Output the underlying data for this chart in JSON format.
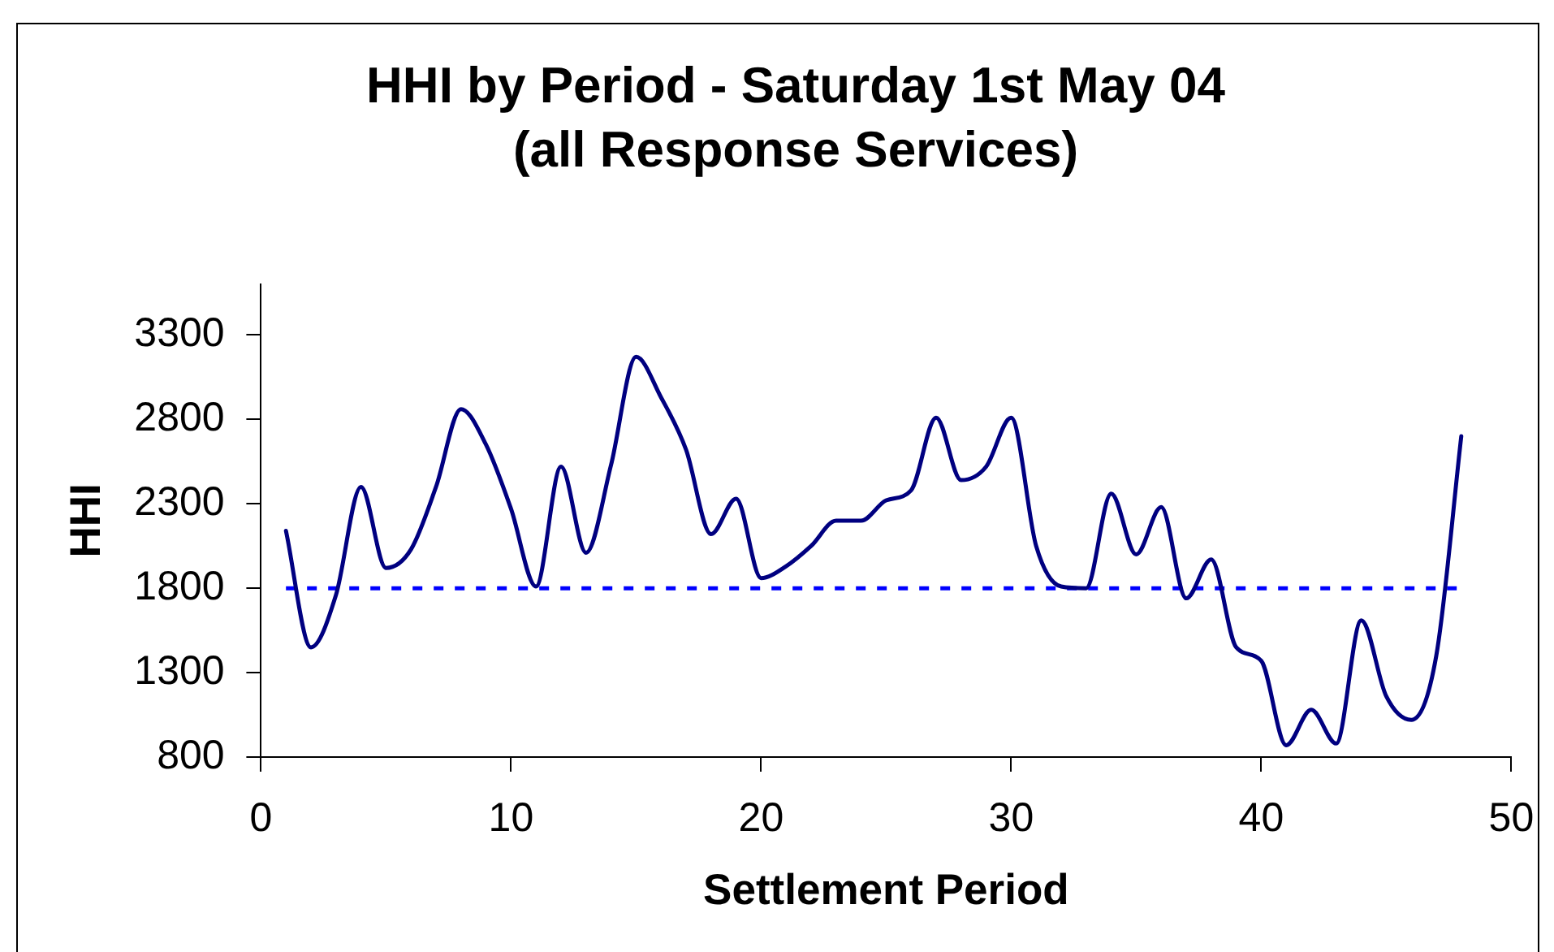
{
  "chart_data": {
    "type": "line",
    "title": "HHI by Period - Saturday 1st May 04\n(all Response Services)",
    "xlabel": "Settlement Period",
    "ylabel": "HHI",
    "x": [
      1,
      2,
      3,
      4,
      5,
      6,
      7,
      8,
      9,
      10,
      11,
      12,
      13,
      14,
      15,
      16,
      17,
      18,
      19,
      20,
      21,
      22,
      23,
      24,
      25,
      26,
      27,
      28,
      29,
      30,
      31,
      32,
      33,
      34,
      35,
      36,
      37,
      38,
      39,
      40,
      41,
      42,
      43,
      44,
      45,
      46,
      47,
      48
    ],
    "values": [
      2140,
      1450,
      1760,
      2400,
      1920,
      2030,
      2400,
      2860,
      2650,
      2270,
      1810,
      2520,
      2010,
      2530,
      3170,
      2930,
      2620,
      2120,
      2330,
      1860,
      1930,
      2050,
      2200,
      2200,
      2320,
      2380,
      2810,
      2440,
      2520,
      2810,
      2050,
      1810,
      1800,
      2360,
      2000,
      2280,
      1740,
      1970,
      1450,
      1370,
      870,
      1080,
      880,
      1610,
      1160,
      1020,
      1400,
      2700
    ],
    "color": "#000080",
    "marker": "none",
    "line_style": "solid",
    "xlim": [
      0,
      50
    ],
    "xticks": [
      0,
      10,
      20,
      30,
      40,
      50
    ],
    "ylim": [
      800,
      3600
    ],
    "yticks": [
      800,
      1300,
      1800,
      2300,
      2800,
      3300
    ],
    "ref_lines": [
      {
        "axis": "y",
        "value": 1800,
        "color": "#0000ff",
        "line_style": "dashed"
      }
    ],
    "grid": false,
    "legend": false
  }
}
